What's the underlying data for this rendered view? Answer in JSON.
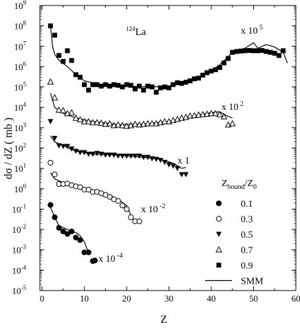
{
  "chart_data": {
    "type": "scatter",
    "xlabel": "Z",
    "ylabel": "dσ / dZ ( mb )",
    "xlim": [
      -0.5,
      60
    ],
    "ylim_log10": [
      -5,
      9
    ],
    "x_ticks": [
      0,
      10,
      20,
      30,
      40,
      50,
      60
    ],
    "y_ticks": [
      {
        "exp": -5,
        "label": "10",
        "sup": "-5"
      },
      {
        "exp": -4,
        "label": "10",
        "sup": "-4"
      },
      {
        "exp": -3,
        "label": "10",
        "sup": "-3"
      },
      {
        "exp": -2,
        "label": "10",
        "sup": "-2"
      },
      {
        "exp": -1,
        "label": "10",
        "sup": "-1"
      },
      {
        "exp": 0,
        "label": "10",
        "sup": "0"
      },
      {
        "exp": 1,
        "label": "10",
        "sup": "1"
      },
      {
        "exp": 2,
        "label": "10",
        "sup": "2"
      },
      {
        "exp": 3,
        "label": "10",
        "sup": "3"
      },
      {
        "exp": 4,
        "label": "10",
        "sup": "4"
      },
      {
        "exp": 5,
        "label": "10",
        "sup": "5"
      },
      {
        "exp": 6,
        "label": "10",
        "sup": "6"
      },
      {
        "exp": 7,
        "label": "10",
        "sup": "7"
      },
      {
        "exp": 8,
        "label": "10",
        "sup": "8"
      },
      {
        "exp": 9,
        "label": "10",
        "sup": "9"
      }
    ],
    "nucleus_label": {
      "sup": "124",
      "text": "La"
    },
    "legend": {
      "title_main": "Z",
      "title_sub1": "bound",
      "title_mid": "/Z",
      "title_sub2": "0",
      "placement": "right",
      "entries": [
        {
          "label": "0.1",
          "marker": "filled-circle"
        },
        {
          "label": "0.3",
          "marker": "open-circle"
        },
        {
          "label": "0.5",
          "marker": "filled-triangle-down"
        },
        {
          "label": "0.7",
          "marker": "open-triangle-up"
        },
        {
          "label": "0.9",
          "marker": "filled-square"
        },
        {
          "label": "SMM",
          "marker": "line"
        }
      ]
    },
    "series": [
      {
        "name": "0.9",
        "marker": "filled-square",
        "scale_text": "x 10",
        "scale_sup": "5",
        "points": [
          [
            2,
            100000000.0
          ],
          [
            3,
            35000000.0
          ],
          [
            4,
            3500000.0
          ],
          [
            5,
            1800000.0
          ],
          [
            6,
            6000000.0
          ],
          [
            7,
            2000000.0
          ],
          [
            8,
            400000.0
          ],
          [
            9,
            300000.0
          ],
          [
            10,
            130000.0
          ],
          [
            11,
            70000.0
          ],
          [
            12,
            130000.0
          ],
          [
            13,
            130000.0
          ],
          [
            14,
            110000.0
          ],
          [
            15,
            130000.0
          ],
          [
            16,
            110000.0
          ],
          [
            17,
            130000.0
          ],
          [
            18,
            120000.0
          ],
          [
            19,
            100000.0
          ],
          [
            20,
            130000.0
          ],
          [
            21,
            120000.0
          ],
          [
            22,
            80000.0
          ],
          [
            23,
            110000.0
          ],
          [
            24,
            70000.0
          ],
          [
            25,
            110000.0
          ],
          [
            26,
            100000.0
          ],
          [
            27,
            55000.0
          ],
          [
            28,
            90000.0
          ],
          [
            29,
            100000.0
          ],
          [
            30,
            90000.0
          ],
          [
            31,
            130000.0
          ],
          [
            32,
            160000.0
          ],
          [
            33,
            150000.0
          ],
          [
            34,
            170000.0
          ],
          [
            35,
            200000.0
          ],
          [
            36,
            250000.0
          ],
          [
            37,
            270000.0
          ],
          [
            38,
            380000.0
          ],
          [
            39,
            500000.0
          ],
          [
            40,
            600000.0
          ],
          [
            41,
            700000.0
          ],
          [
            42,
            900000.0
          ],
          [
            43,
            1500000.0
          ],
          [
            44,
            2500000.0
          ],
          [
            45,
            5000000.0
          ],
          [
            46,
            5500000.0
          ],
          [
            47,
            5800000.0
          ],
          [
            48,
            6000000.0
          ],
          [
            49,
            6200000.0
          ],
          [
            50,
            6000000.0
          ],
          [
            51,
            6000000.0
          ],
          [
            52,
            6200000.0
          ],
          [
            53,
            5500000.0
          ],
          [
            54,
            5000000.0
          ],
          [
            55,
            4500000.0
          ],
          [
            56,
            3500000.0
          ],
          [
            57,
            6000000.0
          ]
        ],
        "smm": [
          [
            2,
            100000000.0
          ],
          [
            2.5,
            10000000.0
          ],
          [
            3,
            4000000.0
          ],
          [
            4,
            2000000.0
          ],
          [
            6,
            1000000.0
          ],
          [
            8,
            400000.0
          ],
          [
            10,
            200000.0
          ],
          [
            14,
            130000.0
          ],
          [
            20,
            110000.0
          ],
          [
            26,
            100000.0
          ],
          [
            30,
            110000.0
          ],
          [
            34,
            180000.0
          ],
          [
            38,
            350000.0
          ],
          [
            42,
            1200000.0
          ],
          [
            45,
            5000000.0
          ],
          [
            48,
            8000000.0
          ],
          [
            50,
            15000000.0
          ],
          [
            51,
            8000000.0
          ],
          [
            53,
            12000000.0
          ],
          [
            55,
            9000000.0
          ],
          [
            57,
            5000000.0
          ],
          [
            58,
            1500000.0
          ]
        ]
      },
      {
        "name": "0.7",
        "marker": "open-triangle-up",
        "scale_text": "x 10",
        "scale_sup": "2",
        "points": [
          [
            2,
            180000.0
          ],
          [
            3,
            30000.0
          ],
          [
            4,
            7500.0
          ],
          [
            5,
            7000.0
          ],
          [
            6,
            5000.0
          ],
          [
            7,
            5500.0
          ],
          [
            8,
            3000.0
          ],
          [
            9,
            2500.0
          ],
          [
            10,
            2000.0
          ],
          [
            11,
            2000.0
          ],
          [
            12,
            1800.0
          ],
          [
            13,
            1800.0
          ],
          [
            14,
            1700.0
          ],
          [
            15,
            1500.0
          ],
          [
            16,
            1600.0
          ],
          [
            17,
            1300.0
          ],
          [
            18,
            1400.0
          ],
          [
            19,
            1300.0
          ],
          [
            20,
            1200.0
          ],
          [
            21,
            1300.0
          ],
          [
            22,
            1500.0
          ],
          [
            23,
            1400.0
          ],
          [
            24,
            1500.0
          ],
          [
            25,
            1600.0
          ],
          [
            26,
            1600.0
          ],
          [
            27,
            1600.0
          ],
          [
            28,
            1800.0
          ],
          [
            29,
            2000.0
          ],
          [
            30,
            2000.0
          ],
          [
            31,
            2300.0
          ],
          [
            32,
            2600.0
          ],
          [
            33,
            3000.0
          ],
          [
            34,
            3300.0
          ],
          [
            35,
            3800.0
          ],
          [
            36,
            4000.0
          ],
          [
            37,
            4300.0
          ],
          [
            38,
            4500.0
          ],
          [
            39,
            4700.0
          ],
          [
            40,
            5000.0
          ],
          [
            41,
            5000.0
          ],
          [
            42,
            4500.0
          ],
          [
            43,
            3500.0
          ],
          [
            44,
            1400.0
          ],
          [
            45,
            1600.0
          ]
        ],
        "smm": [
          [
            2,
            50000.0
          ],
          [
            3,
            10000.0
          ],
          [
            5,
            5000.0
          ],
          [
            8,
            3000.0
          ],
          [
            12,
            2000.0
          ],
          [
            18,
            1400.0
          ],
          [
            24,
            1500.0
          ],
          [
            30,
            2000.0
          ],
          [
            36,
            3800.0
          ],
          [
            40,
            5500.0
          ],
          [
            42,
            6000.0
          ],
          [
            44,
            3500.0
          ],
          [
            45,
            3000.0
          ]
        ]
      },
      {
        "name": "0.5",
        "marker": "filled-triangle-down",
        "scale_text": "x 1",
        "scale_sup": "",
        "points": [
          [
            2,
            2000.0
          ],
          [
            3,
            300.0
          ],
          [
            4,
            130.0
          ],
          [
            5,
            120.0
          ],
          [
            6,
            120.0
          ],
          [
            7,
            90.0
          ],
          [
            8,
            70.0
          ],
          [
            9,
            60.0
          ],
          [
            10,
            60.0
          ],
          [
            11,
            50.0
          ],
          [
            12,
            50.0
          ],
          [
            13,
            55.0
          ],
          [
            14,
            50.0
          ],
          [
            15,
            45.0
          ],
          [
            16,
            45.0
          ],
          [
            17,
            45.0
          ],
          [
            18,
            40.0
          ],
          [
            19,
            40.0
          ],
          [
            20,
            40.0
          ],
          [
            21,
            40.0
          ],
          [
            22,
            40.0
          ],
          [
            23,
            40.0
          ],
          [
            24,
            35.0
          ],
          [
            25,
            35.0
          ],
          [
            26,
            30.0
          ],
          [
            27,
            28.0
          ],
          [
            28,
            25.0
          ],
          [
            29,
            20.0
          ],
          [
            30,
            15.0
          ],
          [
            31,
            13.0
          ],
          [
            32,
            10.0
          ],
          [
            33,
            5.0
          ],
          [
            34,
            5.0
          ]
        ],
        "smm": [
          [
            2,
            400.0
          ],
          [
            3,
            200.0
          ],
          [
            5,
            130.0
          ],
          [
            8,
            70.0
          ],
          [
            12,
            50.0
          ],
          [
            18,
            45.0
          ],
          [
            24,
            35.0
          ],
          [
            28,
            28.0
          ],
          [
            31,
            18.0
          ],
          [
            33,
            10.0
          ],
          [
            34,
            11.0
          ]
        ]
      },
      {
        "name": "0.3",
        "marker": "open-circle",
        "scale_text": "x 10",
        "scale_sup": "-2",
        "points": [
          [
            2,
            19.0
          ],
          [
            3,
            5.0
          ],
          [
            4,
            1.7
          ],
          [
            5,
            1.7
          ],
          [
            6,
            1.8
          ],
          [
            7,
            1.5
          ],
          [
            8,
            1.3
          ],
          [
            9,
            1.2
          ],
          [
            10,
            0.9
          ],
          [
            11,
            0.9
          ],
          [
            12,
            0.7
          ],
          [
            13,
            0.7
          ],
          [
            14,
            0.6
          ],
          [
            15,
            0.5
          ],
          [
            16,
            0.4
          ],
          [
            17,
            0.3
          ],
          [
            18,
            0.25
          ],
          [
            19,
            0.15
          ],
          [
            20,
            0.1
          ],
          [
            21,
            0.04
          ],
          [
            22,
            0.025
          ],
          [
            23,
            0.025
          ]
        ],
        "smm": [
          [
            2,
            6.0
          ],
          [
            3,
            3.0
          ],
          [
            5,
            2.0
          ],
          [
            8,
            1.4
          ],
          [
            12,
            0.75
          ],
          [
            15,
            0.6
          ],
          [
            18,
            0.3
          ],
          [
            20,
            0.15
          ],
          [
            21,
            0.05
          ]
        ]
      },
      {
        "name": "0.1",
        "marker": "filled-circle",
        "scale_text": "x 10",
        "scale_sup": "-4",
        "points": [
          [
            2,
            0.16
          ],
          [
            3,
            0.04
          ],
          [
            4,
            0.012
          ],
          [
            5,
            0.008
          ],
          [
            6,
            0.006
          ],
          [
            7,
            0.008
          ],
          [
            8,
            0.004
          ],
          [
            9,
            0.003
          ],
          [
            10,
            0.00075
          ],
          [
            11,
            0.00075
          ],
          [
            12,
            0.00028
          ],
          [
            12.5,
            0.0003
          ]
        ],
        "smm": [
          [
            2,
            0.12
          ],
          [
            3,
            0.04
          ],
          [
            4,
            0.015
          ],
          [
            6,
            0.01
          ],
          [
            7,
            0.008
          ],
          [
            8,
            0.007
          ],
          [
            9,
            0.005
          ],
          [
            10,
            0.0025
          ],
          [
            11,
            0.0007
          ]
        ]
      }
    ]
  }
}
